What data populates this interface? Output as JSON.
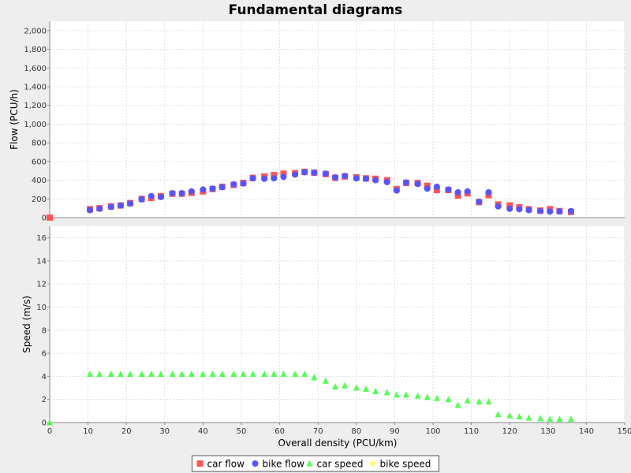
{
  "colors": {
    "car_flow": "#ff5555",
    "bike_flow": "#5555ff",
    "car_speed": "#55ff55",
    "bike_speed": "#ffff55",
    "plot_bg": "#ffffff",
    "grid": "#d8d8d8"
  },
  "chart_data": {
    "type": "scatter",
    "title": "Fundamental diagrams",
    "xlabel": "Overall density (PCU/km)",
    "xlim": [
      0,
      150
    ],
    "x_ticks": [
      0,
      10,
      20,
      30,
      40,
      50,
      60,
      70,
      80,
      90,
      100,
      110,
      120,
      130,
      140,
      150
    ],
    "grid": true,
    "legend_position": "bottom-center",
    "panels": [
      {
        "ylabel": "Flow (PCU/h)",
        "ylim": [
          0,
          2100
        ],
        "y_ticks": [
          0,
          200,
          400,
          600,
          800,
          1000,
          1200,
          1400,
          1600,
          1800,
          2000
        ],
        "y_tick_labels": [
          "0",
          "200",
          "400",
          "600",
          "800",
          "1,000",
          "1,200",
          "1,400",
          "1,600",
          "1,800",
          "2,000"
        ],
        "series": [
          {
            "name": "car flow",
            "marker": "square",
            "color_key": "car_flow",
            "points": [
              [
                0,
                0
              ],
              [
                10.5,
                90
              ],
              [
                13,
                100
              ],
              [
                16,
                120
              ],
              [
                18.5,
                130
              ],
              [
                21,
                155
              ],
              [
                24,
                200
              ],
              [
                26.5,
                210
              ],
              [
                29,
                230
              ],
              [
                32,
                255
              ],
              [
                34.5,
                255
              ],
              [
                37,
                265
              ],
              [
                40,
                280
              ],
              [
                42.5,
                305
              ],
              [
                45,
                330
              ],
              [
                48,
                350
              ],
              [
                50.5,
                370
              ],
              [
                53,
                425
              ],
              [
                56,
                440
              ],
              [
                58.5,
                455
              ],
              [
                61,
                470
              ],
              [
                64,
                475
              ],
              [
                66.5,
                490
              ],
              [
                69,
                480
              ],
              [
                72,
                465
              ],
              [
                74.5,
                425
              ],
              [
                77,
                440
              ],
              [
                80,
                430
              ],
              [
                82.5,
                420
              ],
              [
                85,
                415
              ],
              [
                88,
                400
              ],
              [
                90.5,
                305
              ],
              [
                93,
                370
              ],
              [
                96,
                370
              ],
              [
                98.5,
                340
              ],
              [
                101,
                295
              ],
              [
                104,
                295
              ],
              [
                106.5,
                235
              ],
              [
                109,
                260
              ],
              [
                112,
                165
              ],
              [
                114.5,
                240
              ],
              [
                117,
                140
              ],
              [
                120,
                130
              ],
              [
                122.5,
                110
              ],
              [
                125,
                90
              ],
              [
                128,
                75
              ],
              [
                130.5,
                90
              ],
              [
                133,
                70
              ],
              [
                136,
                60
              ]
            ]
          },
          {
            "name": "bike flow",
            "marker": "circle",
            "color_key": "bike_flow",
            "points": [
              [
                10.5,
                80
              ],
              [
                13,
                95
              ],
              [
                16,
                115
              ],
              [
                18.5,
                130
              ],
              [
                21,
                150
              ],
              [
                24,
                195
              ],
              [
                26.5,
                230
              ],
              [
                29,
                220
              ],
              [
                32,
                260
              ],
              [
                34.5,
                260
              ],
              [
                37,
                280
              ],
              [
                40,
                300
              ],
              [
                42.5,
                310
              ],
              [
                45,
                325
              ],
              [
                48,
                355
              ],
              [
                50.5,
                365
              ],
              [
                53,
                420
              ],
              [
                56,
                415
              ],
              [
                58.5,
                420
              ],
              [
                61,
                435
              ],
              [
                64,
                460
              ],
              [
                66.5,
                485
              ],
              [
                69,
                480
              ],
              [
                72,
                470
              ],
              [
                74.5,
                430
              ],
              [
                77,
                445
              ],
              [
                80,
                420
              ],
              [
                82.5,
                415
              ],
              [
                85,
                400
              ],
              [
                88,
                380
              ],
              [
                90.5,
                290
              ],
              [
                93,
                375
              ],
              [
                96,
                360
              ],
              [
                98.5,
                310
              ],
              [
                101,
                330
              ],
              [
                104,
                300
              ],
              [
                106.5,
                270
              ],
              [
                109,
                280
              ],
              [
                112,
                170
              ],
              [
                114.5,
                270
              ],
              [
                117,
                120
              ],
              [
                120,
                95
              ],
              [
                122.5,
                90
              ],
              [
                125,
                80
              ],
              [
                128,
                70
              ],
              [
                130.5,
                65
              ],
              [
                133,
                65
              ],
              [
                136,
                70
              ]
            ]
          }
        ]
      },
      {
        "ylabel": "Speed (m/s)",
        "ylim": [
          0,
          17
        ],
        "y_ticks": [
          0,
          2,
          4,
          6,
          8,
          10,
          12,
          14,
          16
        ],
        "y_tick_labels": [
          "0",
          "2",
          "4",
          "6",
          "8",
          "10",
          "12",
          "14",
          "16"
        ],
        "series": [
          {
            "name": "car speed",
            "marker": "triangle",
            "color_key": "car_speed",
            "points": [
              [
                0,
                0
              ],
              [
                10.5,
                4.2
              ],
              [
                13,
                4.2
              ],
              [
                16,
                4.2
              ],
              [
                18.5,
                4.2
              ],
              [
                21,
                4.2
              ],
              [
                24,
                4.2
              ],
              [
                26.5,
                4.2
              ],
              [
                29,
                4.2
              ],
              [
                32,
                4.2
              ],
              [
                34.5,
                4.2
              ],
              [
                37,
                4.2
              ],
              [
                40,
                4.2
              ],
              [
                42.5,
                4.2
              ],
              [
                45,
                4.2
              ],
              [
                48,
                4.2
              ],
              [
                50.5,
                4.2
              ],
              [
                53,
                4.2
              ],
              [
                56,
                4.2
              ],
              [
                58.5,
                4.2
              ],
              [
                61,
                4.2
              ],
              [
                64,
                4.2
              ],
              [
                66.5,
                4.2
              ],
              [
                69,
                3.9
              ],
              [
                72,
                3.6
              ],
              [
                74.5,
                3.1
              ],
              [
                77,
                3.2
              ],
              [
                80,
                3.0
              ],
              [
                82.5,
                2.9
              ],
              [
                85,
                2.7
              ],
              [
                88,
                2.6
              ],
              [
                90.5,
                2.4
              ],
              [
                93,
                2.4
              ],
              [
                96,
                2.3
              ],
              [
                98.5,
                2.2
              ],
              [
                101,
                2.1
              ],
              [
                104,
                2.0
              ],
              [
                106.5,
                1.5
              ],
              [
                109,
                1.9
              ],
              [
                112,
                1.8
              ],
              [
                114.5,
                1.8
              ],
              [
                117,
                0.7
              ],
              [
                120,
                0.6
              ],
              [
                122.5,
                0.5
              ],
              [
                125,
                0.4
              ],
              [
                128,
                0.35
              ],
              [
                130.5,
                0.3
              ],
              [
                133,
                0.3
              ],
              [
                136,
                0.3
              ]
            ]
          },
          {
            "name": "bike speed",
            "marker": "diamond",
            "color_key": "bike_speed",
            "points": []
          }
        ]
      }
    ],
    "legend": [
      {
        "label": "car flow",
        "marker": "square",
        "color_key": "car_flow"
      },
      {
        "label": "bike flow",
        "marker": "circle",
        "color_key": "bike_flow"
      },
      {
        "label": "car speed",
        "marker": "triangle",
        "color_key": "car_speed"
      },
      {
        "label": "bike speed",
        "marker": "diamond",
        "color_key": "bike_speed"
      }
    ]
  }
}
